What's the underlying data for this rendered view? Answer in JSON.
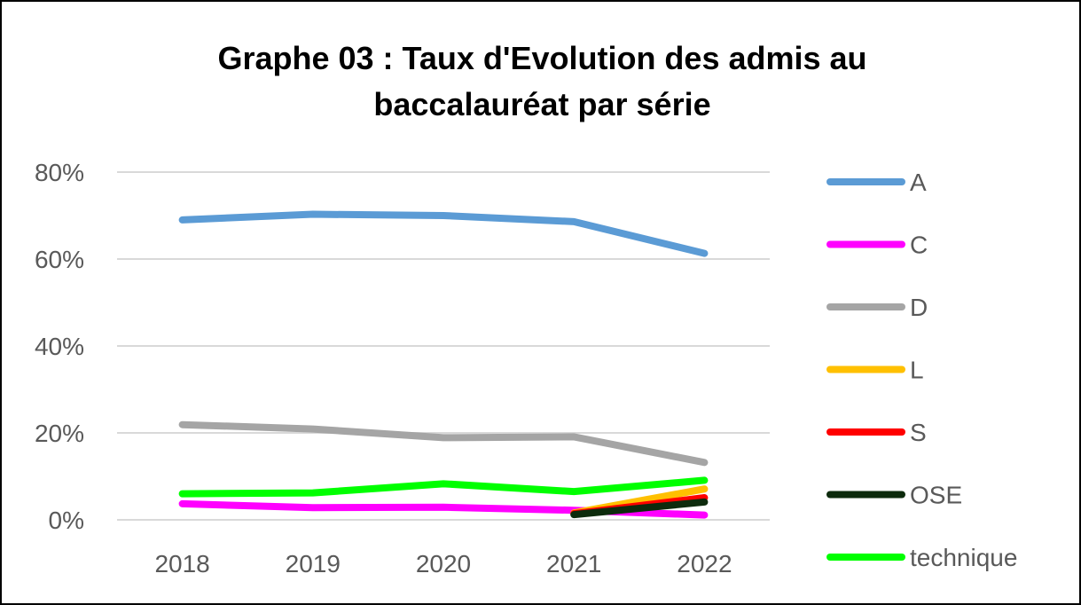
{
  "chart_data": {
    "type": "line",
    "title_lines": [
      "Graphe 03 : Taux d'Evolution des admis au",
      "baccalauréat par série"
    ],
    "x": [
      "2018",
      "2019",
      "2020",
      "2021",
      "2022"
    ],
    "y_ticks": [
      "0%",
      "20%",
      "40%",
      "60%",
      "80%"
    ],
    "ylim": [
      0,
      80
    ],
    "y_unit": "%",
    "grid": true,
    "legend_position": "right",
    "series": [
      {
        "name": "A",
        "color": "#5B9BD5",
        "values": [
          69,
          70.3,
          70,
          68.6,
          61.3
        ]
      },
      {
        "name": "C",
        "color": "#FF00FF",
        "values": [
          3.7,
          2.8,
          2.9,
          2.2,
          1.1
        ]
      },
      {
        "name": "D",
        "color": "#A5A5A5",
        "values": [
          21.9,
          20.9,
          18.9,
          19.1,
          13.2
        ]
      },
      {
        "name": "L",
        "color": "#FFC000",
        "values": [
          null,
          null,
          null,
          1.6,
          7.1
        ]
      },
      {
        "name": "S",
        "color": "#FF0000",
        "values": [
          null,
          null,
          null,
          1.4,
          5.1
        ]
      },
      {
        "name": "OSE",
        "color": "#0D2B0D",
        "values": [
          null,
          null,
          null,
          1.2,
          4.1
        ]
      },
      {
        "name": "technique",
        "color": "#00FF00",
        "values": [
          6,
          6.2,
          8.3,
          6.5,
          9.1
        ]
      }
    ]
  }
}
